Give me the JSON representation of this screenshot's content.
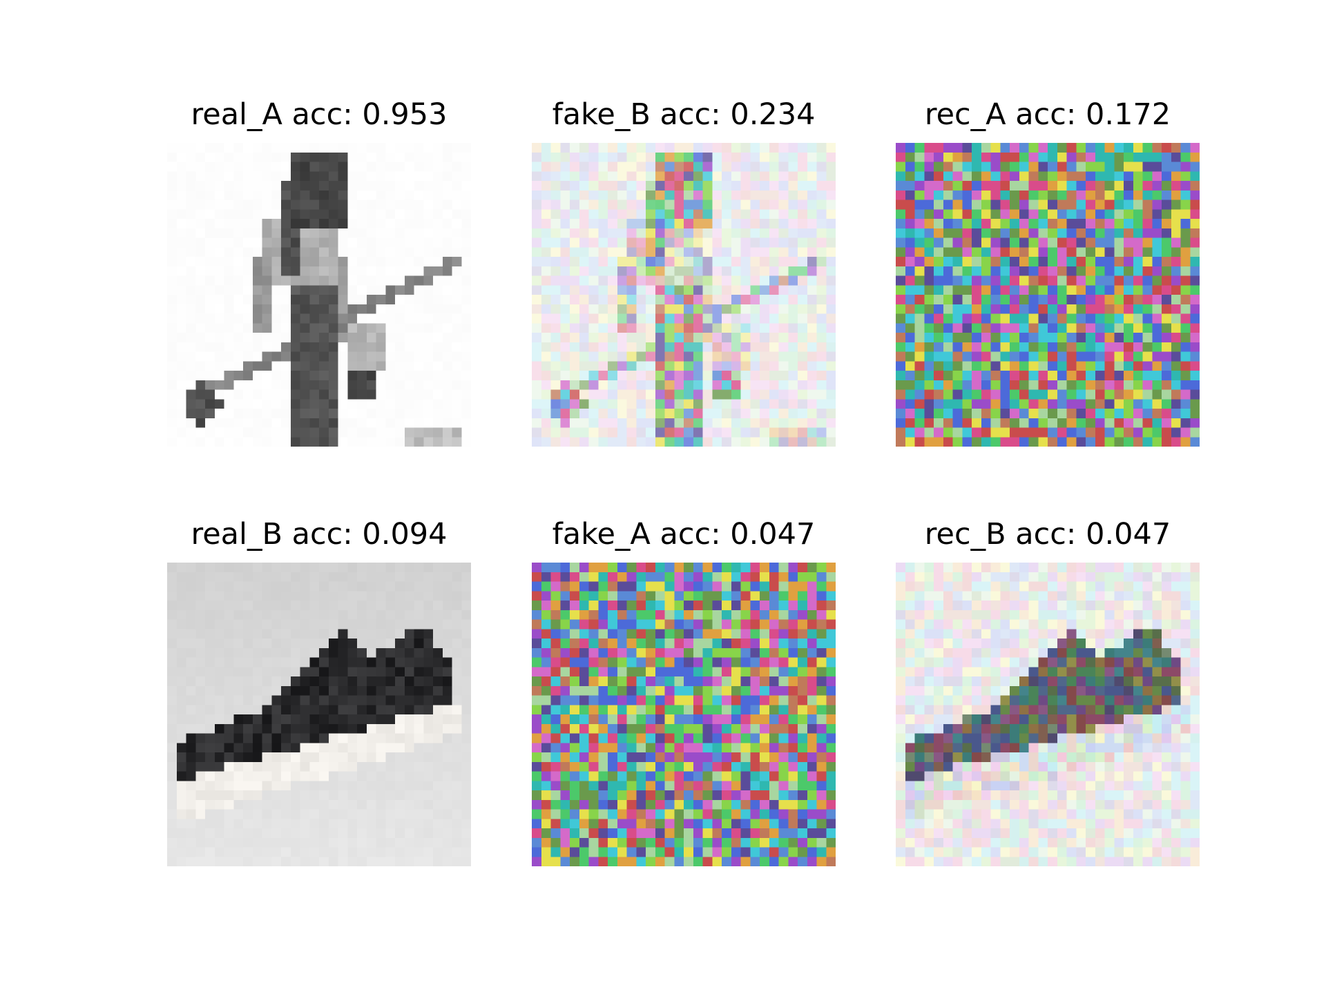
{
  "figure": {
    "panels": [
      {
        "key": "real_A",
        "title": "real_A acc: 0.953",
        "content": "real_a"
      },
      {
        "key": "fake_B",
        "title": "fake_B acc: 0.234",
        "content": "fake_b"
      },
      {
        "key": "rec_A",
        "title": "rec_A acc: 0.172",
        "content": "noise"
      },
      {
        "key": "real_B",
        "title": "real_B acc: 0.094",
        "content": "real_b"
      },
      {
        "key": "fake_A",
        "title": "fake_A acc: 0.047",
        "content": "noise"
      },
      {
        "key": "rec_B",
        "title": "rec_B acc: 0.047",
        "content": "rec_b"
      }
    ]
  }
}
